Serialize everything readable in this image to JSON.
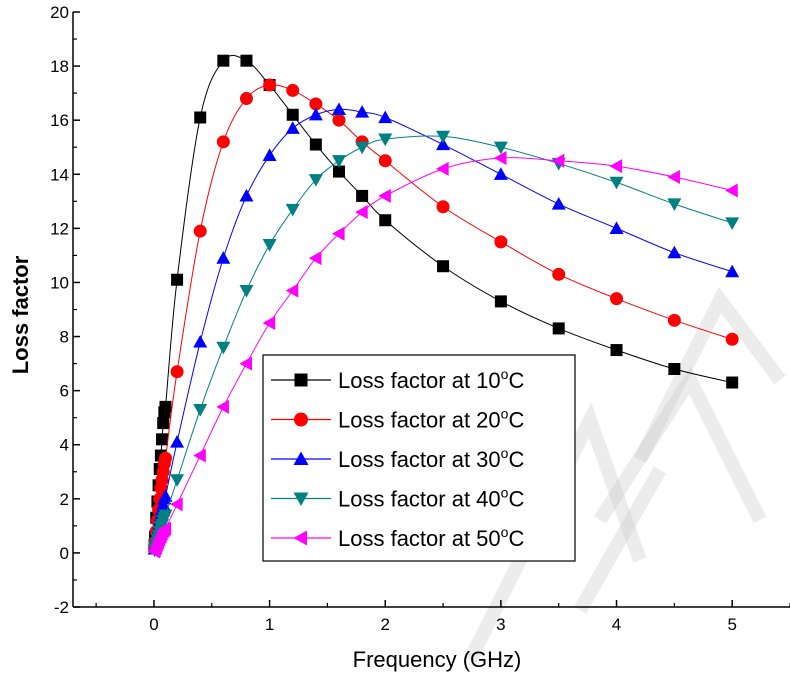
{
  "chart_data": {
    "type": "line",
    "title": "",
    "xlabel": "Frequency (GHz)",
    "ylabel": "Loss factor",
    "xlim": [
      -0.7,
      5.5
    ],
    "ylim": [
      -2,
      20
    ],
    "xticks": [
      0,
      1,
      2,
      3,
      4,
      5
    ],
    "yticks": [
      -2,
      0,
      2,
      4,
      6,
      8,
      10,
      12,
      14,
      16,
      18,
      20
    ],
    "legend": {
      "placement": "center-bottom",
      "title": ""
    },
    "grid": false,
    "series": [
      {
        "name": "Loss factor at 10",
        "unit": "°C",
        "color": "#000000",
        "marker": "square",
        "x": [
          0.005,
          0.01,
          0.02,
          0.03,
          0.04,
          0.05,
          0.06,
          0.07,
          0.08,
          0.09,
          0.1,
          0.2,
          0.4,
          0.6,
          0.8,
          1.0,
          1.2,
          1.4,
          1.6,
          1.8,
          2.0,
          2.5,
          3.0,
          3.5,
          4.0,
          4.5,
          5.0
        ],
        "y": [
          0.3,
          0.6,
          1.3,
          1.9,
          2.5,
          3.1,
          3.6,
          4.2,
          4.8,
          5.2,
          5.4,
          10.1,
          16.1,
          18.2,
          18.2,
          17.3,
          16.2,
          15.1,
          14.1,
          13.2,
          12.3,
          10.6,
          9.3,
          8.3,
          7.5,
          6.8,
          6.3
        ]
      },
      {
        "name": "Loss factor at 20",
        "unit": "°C",
        "color": "#ff0000",
        "marker": "circle",
        "x": [
          0.005,
          0.01,
          0.02,
          0.03,
          0.04,
          0.05,
          0.06,
          0.07,
          0.08,
          0.09,
          0.1,
          0.2,
          0.4,
          0.6,
          0.8,
          1.0,
          1.2,
          1.4,
          1.6,
          1.8,
          2.0,
          2.5,
          3.0,
          3.5,
          4.0,
          4.5,
          5.0
        ],
        "y": [
          0.2,
          0.4,
          0.8,
          1.2,
          1.6,
          2.0,
          2.4,
          2.7,
          3.0,
          3.3,
          3.5,
          6.7,
          11.9,
          15.2,
          16.8,
          17.3,
          17.1,
          16.6,
          16.0,
          15.2,
          14.5,
          12.8,
          11.5,
          10.3,
          9.4,
          8.6,
          7.9
        ]
      },
      {
        "name": "Loss factor at 30",
        "unit": "°C",
        "color": "#0000ff",
        "marker": "triangle-up",
        "x": [
          0.005,
          0.01,
          0.02,
          0.03,
          0.04,
          0.05,
          0.06,
          0.07,
          0.08,
          0.09,
          0.1,
          0.2,
          0.4,
          0.6,
          0.8,
          1.0,
          1.2,
          1.4,
          1.6,
          1.8,
          2.0,
          2.5,
          3.0,
          3.5,
          4.0,
          4.5,
          5.0
        ],
        "y": [
          0.15,
          0.3,
          0.5,
          0.8,
          1.0,
          1.2,
          1.4,
          1.6,
          1.8,
          2.0,
          2.1,
          4.1,
          7.8,
          10.9,
          13.2,
          14.7,
          15.7,
          16.2,
          16.4,
          16.3,
          16.1,
          15.1,
          14.0,
          12.9,
          12.0,
          11.1,
          10.4
        ]
      },
      {
        "name": "Loss factor at 40",
        "unit": "°C",
        "color": "#008080",
        "marker": "triangle-down",
        "x": [
          0.005,
          0.01,
          0.02,
          0.03,
          0.04,
          0.05,
          0.06,
          0.07,
          0.08,
          0.09,
          0.1,
          0.2,
          0.4,
          0.6,
          0.8,
          1.0,
          1.2,
          1.4,
          1.6,
          1.8,
          2.0,
          2.5,
          3.0,
          3.5,
          4.0,
          4.5,
          5.0
        ],
        "y": [
          0.1,
          0.2,
          0.35,
          0.5,
          0.65,
          0.8,
          0.95,
          1.05,
          1.2,
          1.3,
          1.4,
          2.7,
          5.3,
          7.6,
          9.7,
          11.4,
          12.7,
          13.8,
          14.5,
          15.0,
          15.3,
          15.4,
          15.0,
          14.4,
          13.7,
          12.9,
          12.2
        ]
      },
      {
        "name": "Loss factor at 50",
        "unit": "°C",
        "color": "#ff00ff",
        "marker": "triangle-left",
        "x": [
          0.005,
          0.01,
          0.02,
          0.03,
          0.04,
          0.05,
          0.06,
          0.07,
          0.08,
          0.09,
          0.1,
          0.2,
          0.4,
          0.6,
          0.8,
          1.0,
          1.2,
          1.4,
          1.6,
          1.8,
          2.0,
          2.5,
          3.0,
          3.5,
          4.0,
          4.5,
          5.0
        ],
        "y": [
          0.05,
          0.1,
          0.2,
          0.3,
          0.4,
          0.5,
          0.6,
          0.7,
          0.8,
          0.85,
          0.9,
          1.8,
          3.6,
          5.4,
          7.0,
          8.5,
          9.7,
          10.9,
          11.8,
          12.6,
          13.2,
          14.2,
          14.6,
          14.5,
          14.3,
          13.9,
          13.4
        ]
      }
    ]
  }
}
